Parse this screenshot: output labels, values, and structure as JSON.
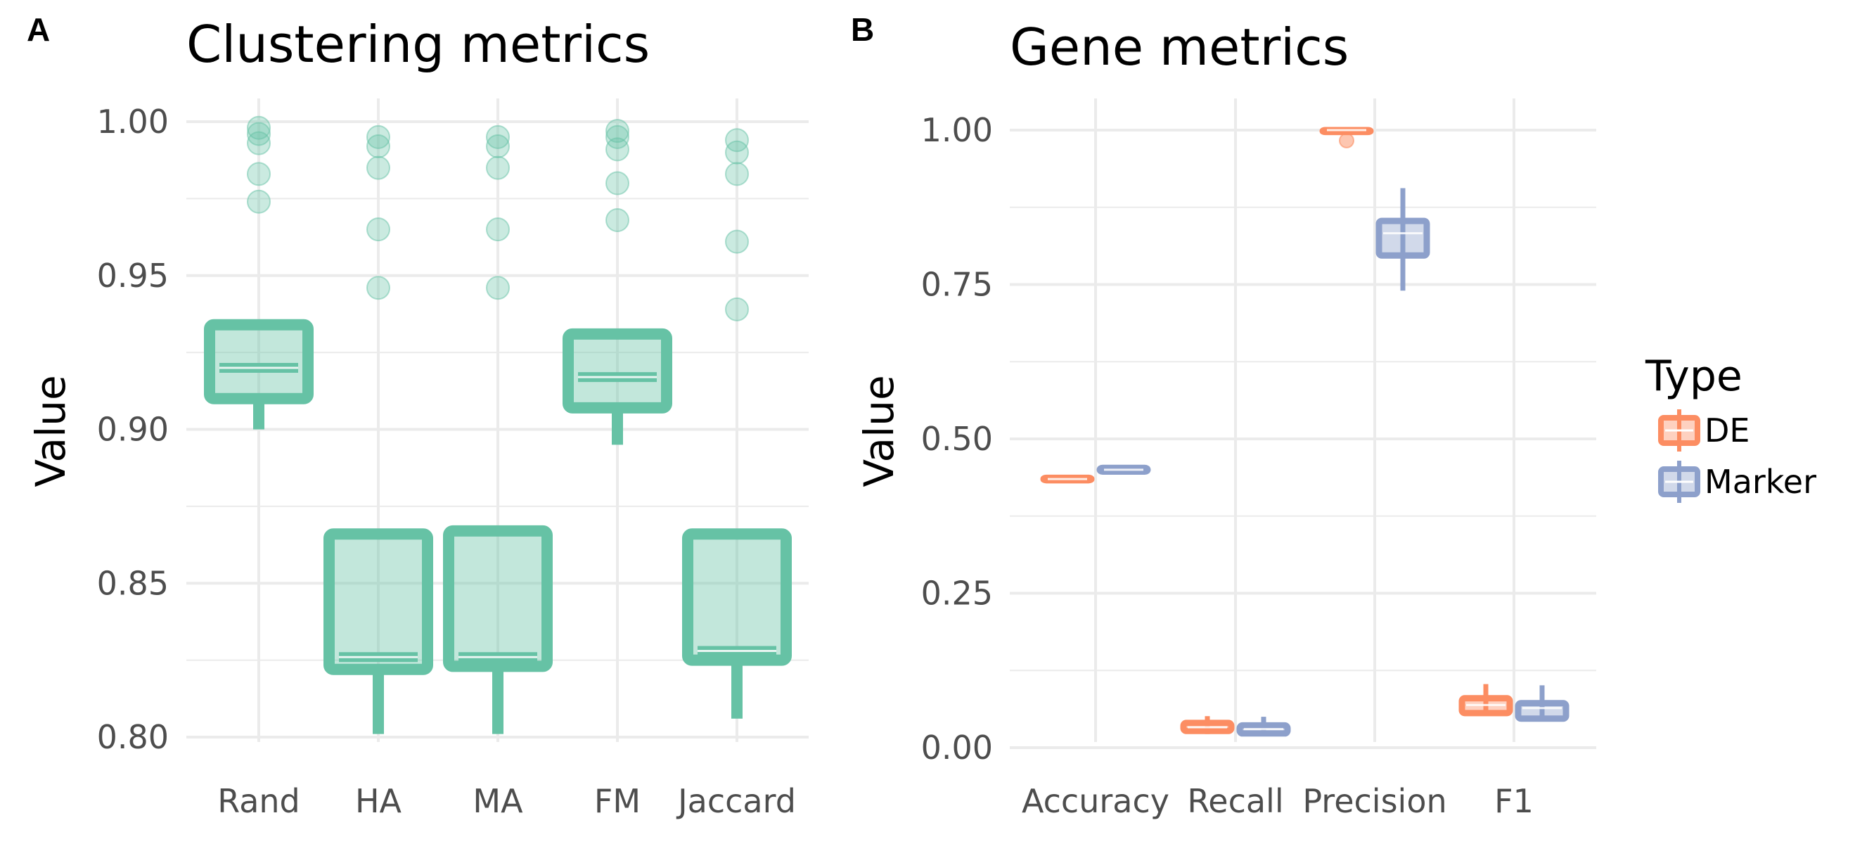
{
  "chart_data": [
    {
      "panel_label": "A",
      "type": "box",
      "title": "Clustering metrics",
      "xlabel": "",
      "ylabel": "Value",
      "ylim": [
        0.8,
        1.0
      ],
      "yticks": [
        "0.80",
        "0.85",
        "0.90",
        "0.95",
        "1.00"
      ],
      "ytick_values": [
        0.8,
        0.85,
        0.9,
        0.95,
        1.0
      ],
      "categories": [
        "Rand",
        "HA",
        "MA",
        "FM",
        "Jaccard"
      ],
      "color": "#66c2a5",
      "grid": true,
      "boxes": [
        {
          "q1": 0.91,
          "median": 0.92,
          "q3": 0.934,
          "whisker_low": 0.9,
          "whisker_high": 0.934,
          "outliers": [
            0.974,
            0.983,
            0.993,
            0.996,
            0.998
          ]
        },
        {
          "q1": 0.822,
          "median": 0.826,
          "q3": 0.866,
          "whisker_low": 0.801,
          "whisker_high": 0.866,
          "outliers": [
            0.946,
            0.965,
            0.985,
            0.992,
            0.995
          ]
        },
        {
          "q1": 0.823,
          "median": 0.826,
          "q3": 0.867,
          "whisker_low": 0.801,
          "whisker_high": 0.867,
          "outliers": [
            0.946,
            0.965,
            0.985,
            0.992,
            0.995
          ]
        },
        {
          "q1": 0.907,
          "median": 0.917,
          "q3": 0.931,
          "whisker_low": 0.895,
          "whisker_high": 0.931,
          "outliers": [
            0.968,
            0.98,
            0.991,
            0.995,
            0.997
          ]
        },
        {
          "q1": 0.825,
          "median": 0.828,
          "q3": 0.866,
          "whisker_low": 0.806,
          "whisker_high": 0.866,
          "outliers": [
            0.939,
            0.961,
            0.983,
            0.99,
            0.994
          ]
        }
      ]
    },
    {
      "panel_label": "B",
      "type": "box",
      "title": "Gene metrics",
      "xlabel": "",
      "ylabel": "Value",
      "ylim": [
        0.0,
        1.0
      ],
      "yticks": [
        "0.00",
        "0.25",
        "0.50",
        "0.75",
        "1.00"
      ],
      "ytick_values": [
        0.0,
        0.25,
        0.5,
        0.75,
        1.0
      ],
      "categories": [
        "Accuracy",
        "Recall",
        "Precision",
        "F1"
      ],
      "grid": true,
      "legend": {
        "title": "Type",
        "position": "right"
      },
      "series": [
        {
          "name": "DE",
          "color": "#fc8d62",
          "boxes": [
            {
              "q1": 0.433,
              "median": 0.435,
              "q3": 0.437,
              "whisker_low": 0.432,
              "whisker_high": 0.438,
              "outliers": []
            },
            {
              "q1": 0.027,
              "median": 0.033,
              "q3": 0.04,
              "whisker_low": 0.022,
              "whisker_high": 0.051,
              "outliers": []
            },
            {
              "q1": 0.997,
              "median": 1.0,
              "q3": 1.0,
              "whisker_low": 0.994,
              "whisker_high": 1.0,
              "outliers": [
                0.983
              ]
            },
            {
              "q1": 0.056,
              "median": 0.069,
              "q3": 0.08,
              "whisker_low": 0.053,
              "whisker_high": 0.103,
              "outliers": []
            }
          ]
        },
        {
          "name": "Marker",
          "color": "#8da0cb",
          "boxes": [
            {
              "q1": 0.447,
              "median": 0.45,
              "q3": 0.453,
              "whisker_low": 0.446,
              "whisker_high": 0.454,
              "outliers": []
            },
            {
              "q1": 0.023,
              "median": 0.03,
              "q3": 0.036,
              "whisker_low": 0.02,
              "whisker_high": 0.05,
              "outliers": []
            },
            {
              "q1": 0.797,
              "median": 0.833,
              "q3": 0.853,
              "whisker_low": 0.74,
              "whisker_high": 0.906,
              "outliers": []
            },
            {
              "q1": 0.047,
              "median": 0.064,
              "q3": 0.072,
              "whisker_low": 0.043,
              "whisker_high": 0.101,
              "outliers": []
            }
          ]
        }
      ]
    }
  ]
}
